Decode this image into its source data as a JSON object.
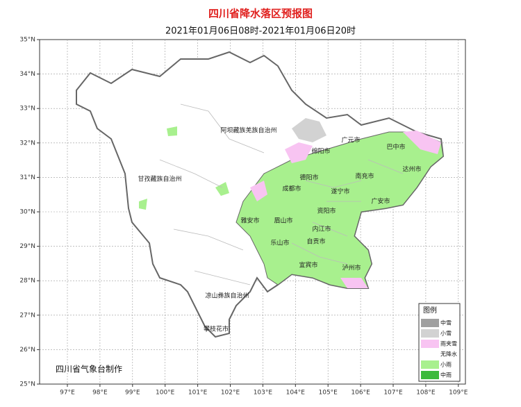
{
  "header": {
    "title": "四川省降水落区预报图",
    "subtitle": "2021年01月06日08时-2021年01月06日20时"
  },
  "lat_ticks": [
    {
      "value": 35,
      "label": "35°N"
    },
    {
      "value": 34,
      "label": "34°N"
    },
    {
      "value": 33,
      "label": "33°N"
    },
    {
      "value": 32,
      "label": "32°N"
    },
    {
      "value": 31,
      "label": "31°N"
    },
    {
      "value": 30,
      "label": "30°N"
    },
    {
      "value": 29,
      "label": "29°N"
    },
    {
      "value": 28,
      "label": "28°N"
    },
    {
      "value": 27,
      "label": "27°N"
    },
    {
      "value": 26,
      "label": "26°N"
    },
    {
      "value": 25,
      "label": "25°N"
    }
  ],
  "lon_ticks": [
    {
      "value": 97,
      "label": "97°E"
    },
    {
      "value": 98,
      "label": "98°E"
    },
    {
      "value": 99,
      "label": "99°E"
    },
    {
      "value": 100,
      "label": "100°E"
    },
    {
      "value": 101,
      "label": "101°E"
    },
    {
      "value": 102,
      "label": "102°E"
    },
    {
      "value": 103,
      "label": "103°E"
    },
    {
      "value": 104,
      "label": "104°E"
    },
    {
      "value": 105,
      "label": "105°E"
    },
    {
      "value": 106,
      "label": "106°E"
    },
    {
      "value": 107,
      "label": "107°E"
    },
    {
      "value": 108,
      "label": "108°E"
    },
    {
      "value": 109,
      "label": "109°E"
    }
  ],
  "places": [
    "阿坝藏族羌族自治州",
    "甘孜藏族自治州",
    "凉山彝族自治州",
    "攀枝花市",
    "广元市",
    "巴中市",
    "绵阳市",
    "达州市",
    "德阳市",
    "南充市",
    "成都市",
    "遂宁市",
    "广安市",
    "资阳市",
    "雅安市",
    "眉山市",
    "内江市",
    "自贡市",
    "乐山市",
    "宜宾市",
    "泸州市"
  ],
  "legend": {
    "title": "图例",
    "items": [
      {
        "label": "中雪",
        "color": "#a0a0a0"
      },
      {
        "label": "小雪",
        "color": "#d2d2d2"
      },
      {
        "label": "雨夹雪",
        "color": "#f8c4f2"
      },
      {
        "label": "无降水",
        "color": "#ffffff"
      },
      {
        "label": "小雨",
        "color": "#a8f08e"
      },
      {
        "label": "中雨",
        "color": "#3cba3c"
      }
    ]
  },
  "credit": "四川省气象台制作"
}
